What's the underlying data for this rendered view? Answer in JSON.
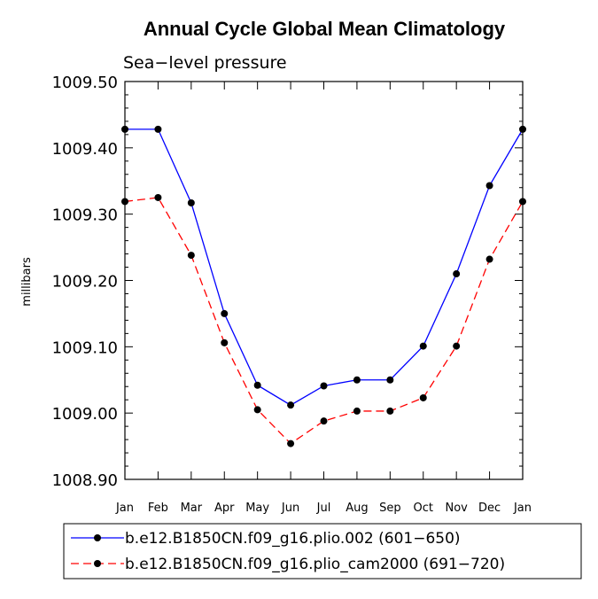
{
  "chart_data": {
    "type": "line",
    "title": "Annual Cycle Global Mean Climatology",
    "subtitle": "Sea−level pressure",
    "xlabel": "",
    "ylabel": "millibars",
    "categories": [
      "Jan",
      "Feb",
      "Mar",
      "Apr",
      "May",
      "Jun",
      "Jul",
      "Aug",
      "Sep",
      "Oct",
      "Nov",
      "Dec",
      "Jan"
    ],
    "ylim": [
      1008.9,
      1009.5
    ],
    "yticks": [
      1008.9,
      1009.0,
      1009.1,
      1009.2,
      1009.3,
      1009.4,
      1009.5
    ],
    "ytick_labels": [
      "1008.90",
      "1009.00",
      "1009.10",
      "1009.20",
      "1009.30",
      "1009.40",
      "1009.50"
    ],
    "grid": false,
    "legend_position": "bottom",
    "series": [
      {
        "name": "b.e12.B1850CN.f09_g16.plio.002 (601−650)",
        "color": "#0000ff",
        "dash": "solid",
        "values": [
          1009.428,
          1009.428,
          1009.317,
          1009.15,
          1009.042,
          1009.012,
          1009.041,
          1009.05,
          1009.05,
          1009.101,
          1009.21,
          1009.343,
          1009.428
        ]
      },
      {
        "name": "b.e12.B1850CN.f09_g16.plio_cam2000 (691−720)",
        "color": "#ff0000",
        "dash": "dashed",
        "values": [
          1009.319,
          1009.325,
          1009.238,
          1009.106,
          1009.005,
          1008.954,
          1008.988,
          1009.003,
          1009.003,
          1009.023,
          1009.101,
          1009.232,
          1009.319
        ]
      }
    ]
  }
}
